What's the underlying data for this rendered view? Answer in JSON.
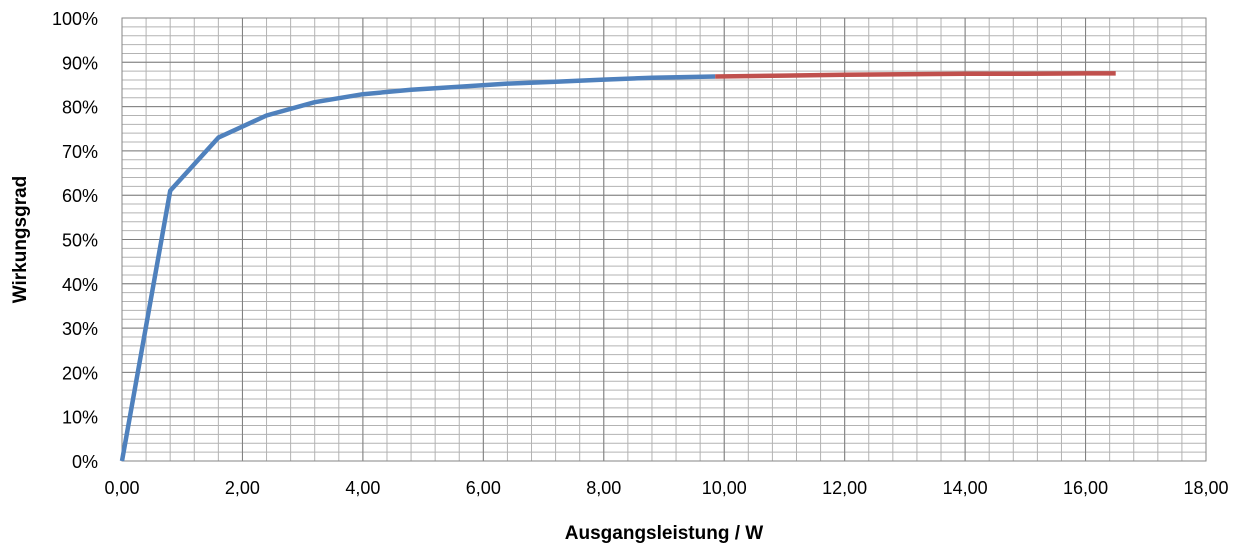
{
  "chart_data": {
    "type": "line",
    "title": "",
    "xlabel": "Ausgangsleistung / W",
    "ylabel": "Wirkungsgrad",
    "xlim": [
      0,
      18
    ],
    "ylim": [
      0,
      1
    ],
    "x_ticks": [
      "0,00",
      "2,00",
      "4,00",
      "6,00",
      "8,00",
      "10,00",
      "12,00",
      "14,00",
      "16,00",
      "18,00"
    ],
    "y_ticks": [
      "0%",
      "10%",
      "20%",
      "30%",
      "40%",
      "50%",
      "60%",
      "70%",
      "80%",
      "90%",
      "100%"
    ],
    "grid": true,
    "legend": "none",
    "series": [
      {
        "color": "#4F81BD",
        "points": [
          [
            0,
            0
          ],
          [
            0.8,
            0.61
          ],
          [
            1.6,
            0.73
          ],
          [
            2.4,
            0.78
          ],
          [
            3.2,
            0.81
          ],
          [
            4.0,
            0.828
          ],
          [
            4.8,
            0.838
          ],
          [
            5.6,
            0.845
          ],
          [
            6.4,
            0.852
          ],
          [
            7.2,
            0.856
          ],
          [
            8.0,
            0.861
          ],
          [
            8.8,
            0.865
          ],
          [
            9.85,
            0.868
          ]
        ]
      },
      {
        "color": "#C0504D",
        "points": [
          [
            9.85,
            0.868
          ],
          [
            11.0,
            0.87
          ],
          [
            12.0,
            0.872
          ],
          [
            13.0,
            0.873
          ],
          [
            14.0,
            0.874
          ],
          [
            15.0,
            0.874
          ],
          [
            16.0,
            0.875
          ],
          [
            16.5,
            0.875
          ]
        ]
      }
    ]
  }
}
